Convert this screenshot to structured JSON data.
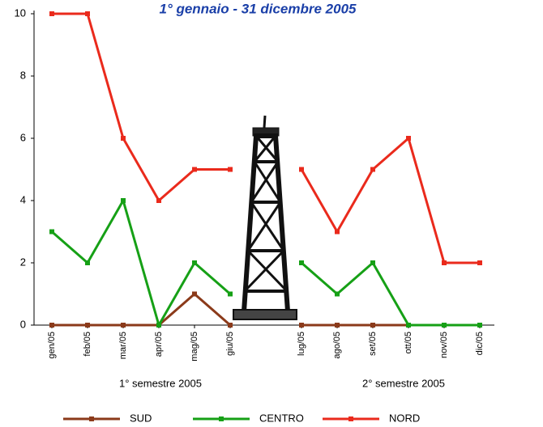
{
  "chart_data": {
    "type": "line",
    "title": "1° gennaio - 31 dicembre 2005",
    "categories": [
      "gen/05",
      "feb/05",
      "mar/05",
      "apr/05",
      "mag/05",
      "giu/05",
      null,
      "lug/05",
      "ago/05",
      "set/05",
      "ott/05",
      "nov/05",
      "dic/05"
    ],
    "groups": [
      "1° semestre 2005",
      "2° semestre 2005"
    ],
    "series": [
      {
        "name": "SUD",
        "color": "#8b3a1a",
        "values": [
          0,
          0,
          0,
          0,
          1,
          0,
          null,
          0,
          0,
          0,
          0,
          0,
          0
        ]
      },
      {
        "name": "CENTRO",
        "color": "#16a016",
        "values": [
          3,
          2,
          4,
          0,
          2,
          1,
          null,
          2,
          1,
          2,
          0,
          0,
          0
        ]
      },
      {
        "name": "NORD",
        "color": "#ea2a1c",
        "values": [
          10,
          10,
          6,
          4,
          5,
          5,
          null,
          5,
          3,
          5,
          6,
          2,
          2
        ]
      }
    ],
    "ylim": [
      0,
      10
    ],
    "yticks": [
      0,
      2,
      4,
      6,
      8,
      10
    ],
    "legend": "bottom"
  }
}
